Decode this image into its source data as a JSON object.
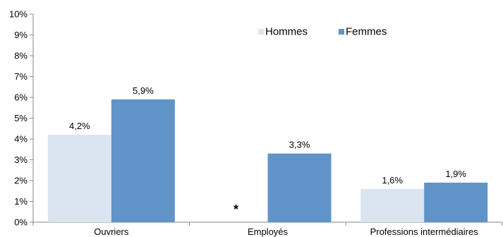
{
  "chart_data": {
    "type": "bar",
    "title": "",
    "xlabel": "",
    "ylabel": "",
    "categories": [
      "Ouvriers",
      "Employés",
      "Professions intermédiaires"
    ],
    "series": [
      {
        "name": "Hommes",
        "color": "#dbe5f1",
        "values": [
          4.2,
          null,
          1.6
        ],
        "labels": [
          "4,2%",
          "*",
          "1,6%"
        ]
      },
      {
        "name": "Femmes",
        "color": "#6094c9",
        "values": [
          5.9,
          3.3,
          1.9
        ],
        "labels": [
          "5,9%",
          "3,3%",
          "1,9%"
        ]
      }
    ],
    "ylim": [
      0,
      10
    ],
    "yticks": [
      0,
      1,
      2,
      3,
      4,
      5,
      6,
      7,
      8,
      9,
      10
    ],
    "ytick_labels": [
      "0%",
      "1%",
      "2%",
      "3%",
      "4%",
      "5%",
      "6%",
      "7%",
      "8%",
      "9%",
      "10%"
    ],
    "grid": false,
    "legend_position": "top-right"
  }
}
